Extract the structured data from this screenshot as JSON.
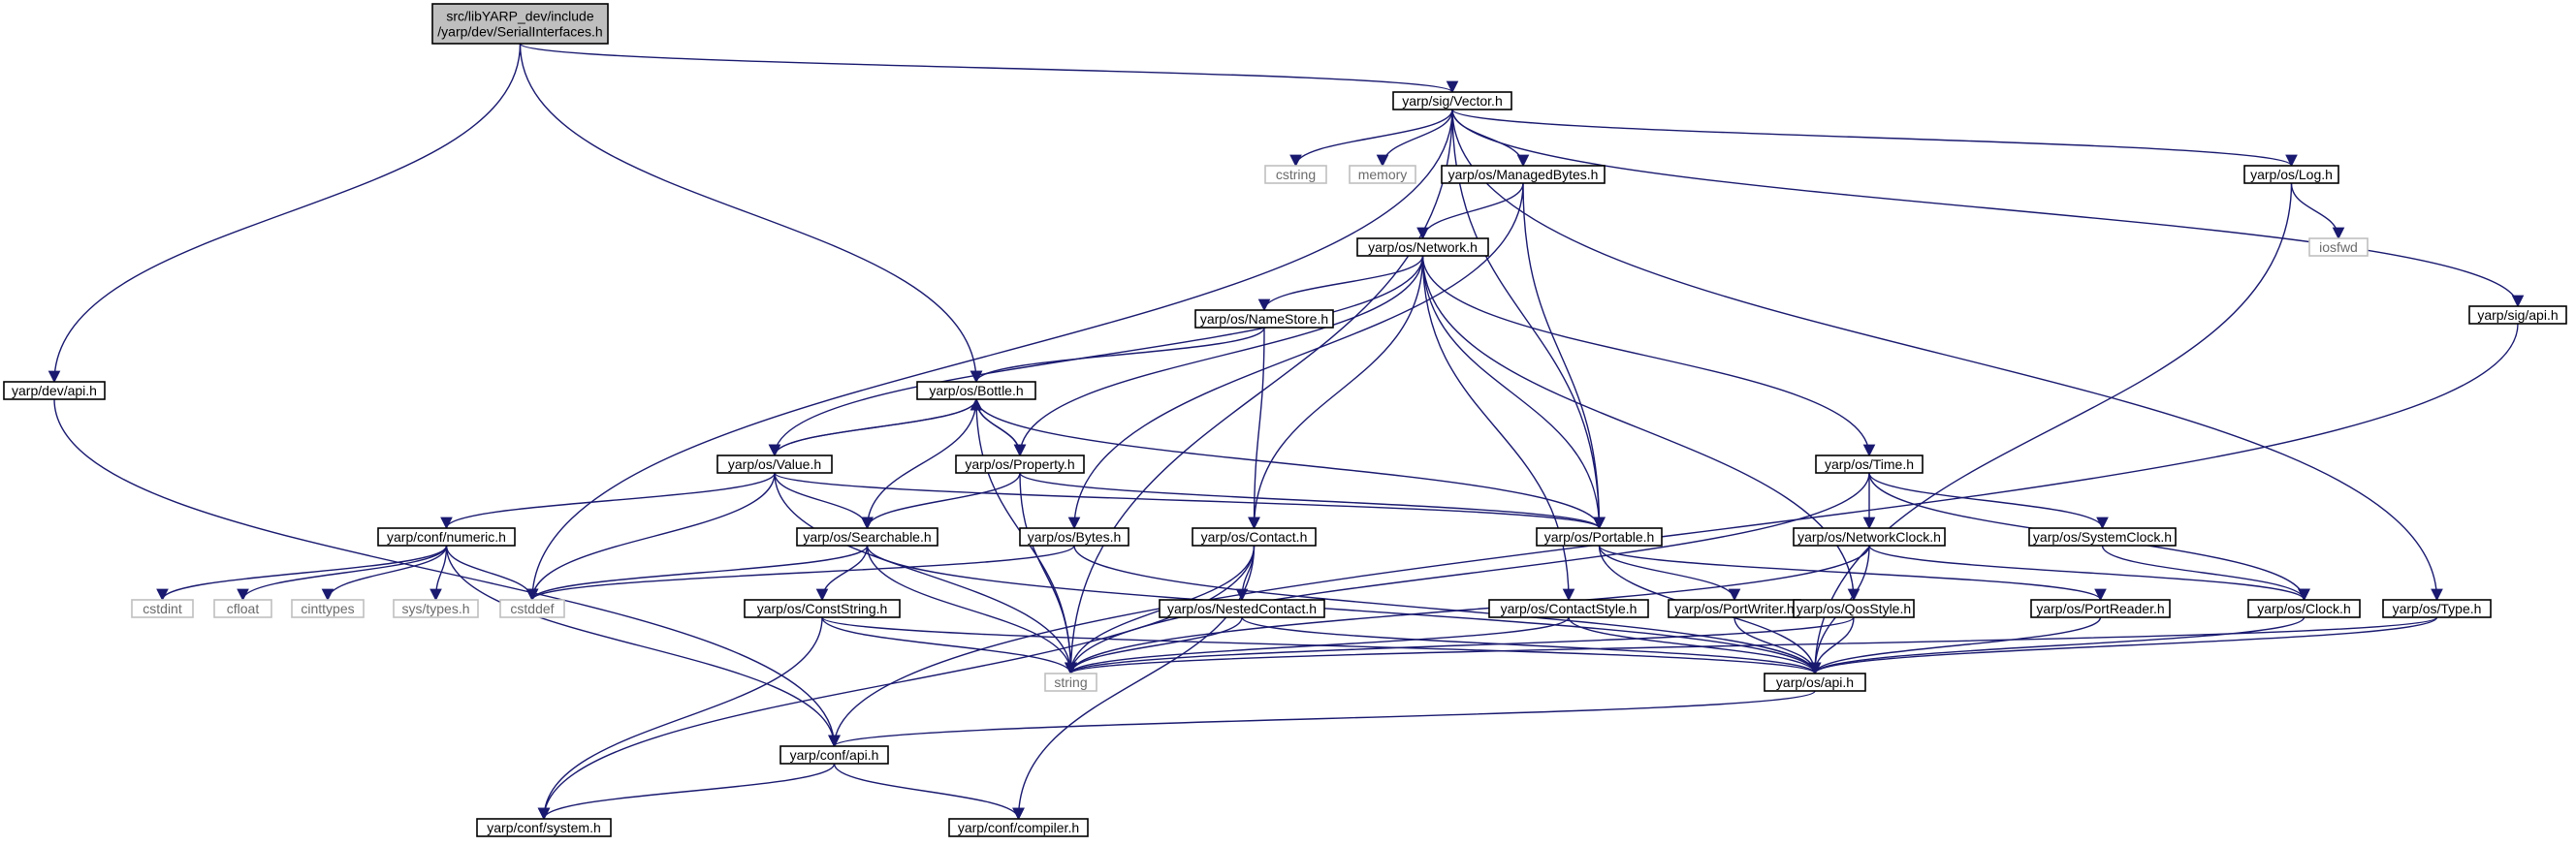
{
  "graph": {
    "colors": {
      "edge": "#191970",
      "root_fill": "#bfbfbf",
      "node_fill": "#ffffff",
      "node_border": "#000000",
      "system_border": "#bfbfbf",
      "system_text": "#6b6b6b"
    },
    "nodes": [
      {
        "id": "root",
        "kind": "root",
        "lines": [
          "src/libYARP_dev/include",
          "/yarp/dev/SerialInterfaces.h"
        ]
      },
      {
        "id": "sig_vector",
        "kind": "file",
        "lines": [
          "yarp/sig/Vector.h"
        ]
      },
      {
        "id": "dev_api",
        "kind": "file",
        "lines": [
          "yarp/dev/api.h"
        ]
      },
      {
        "id": "cstring",
        "kind": "system",
        "lines": [
          "cstring"
        ]
      },
      {
        "id": "memory",
        "kind": "system",
        "lines": [
          "memory"
        ]
      },
      {
        "id": "managedbytes",
        "kind": "file",
        "lines": [
          "yarp/os/ManagedBytes.h"
        ]
      },
      {
        "id": "log",
        "kind": "file",
        "lines": [
          "yarp/os/Log.h"
        ]
      },
      {
        "id": "iosfwd",
        "kind": "system",
        "lines": [
          "iosfwd"
        ]
      },
      {
        "id": "sig_api",
        "kind": "file",
        "lines": [
          "yarp/sig/api.h"
        ]
      },
      {
        "id": "network",
        "kind": "file",
        "lines": [
          "yarp/os/Network.h"
        ]
      },
      {
        "id": "namestore",
        "kind": "file",
        "lines": [
          "yarp/os/NameStore.h"
        ]
      },
      {
        "id": "bottle",
        "kind": "file",
        "lines": [
          "yarp/os/Bottle.h"
        ]
      },
      {
        "id": "value",
        "kind": "file",
        "lines": [
          "yarp/os/Value.h"
        ]
      },
      {
        "id": "property",
        "kind": "file",
        "lines": [
          "yarp/os/Property.h"
        ]
      },
      {
        "id": "portable",
        "kind": "file",
        "lines": [
          "yarp/os/Portable.h"
        ]
      },
      {
        "id": "time",
        "kind": "file",
        "lines": [
          "yarp/os/Time.h"
        ]
      },
      {
        "id": "numeric",
        "kind": "file",
        "lines": [
          "yarp/conf/numeric.h"
        ]
      },
      {
        "id": "searchable",
        "kind": "file",
        "lines": [
          "yarp/os/Searchable.h"
        ]
      },
      {
        "id": "bytes",
        "kind": "file",
        "lines": [
          "yarp/os/Bytes.h"
        ]
      },
      {
        "id": "contact",
        "kind": "file",
        "lines": [
          "yarp/os/Contact.h"
        ]
      },
      {
        "id": "networkclock",
        "kind": "file",
        "lines": [
          "yarp/os/NetworkClock.h"
        ]
      },
      {
        "id": "systemclock",
        "kind": "file",
        "lines": [
          "yarp/os/SystemClock.h"
        ]
      },
      {
        "id": "cstdint",
        "kind": "system",
        "lines": [
          "cstdint"
        ]
      },
      {
        "id": "cfloat",
        "kind": "system",
        "lines": [
          "cfloat"
        ]
      },
      {
        "id": "cinttypes",
        "kind": "system",
        "lines": [
          "cinttypes"
        ]
      },
      {
        "id": "systypes",
        "kind": "system",
        "lines": [
          "sys/types.h"
        ]
      },
      {
        "id": "cstddef",
        "kind": "system",
        "lines": [
          "cstddef"
        ]
      },
      {
        "id": "conststring",
        "kind": "file",
        "lines": [
          "yarp/os/ConstString.h"
        ]
      },
      {
        "id": "nestedcontact",
        "kind": "file",
        "lines": [
          "yarp/os/NestedContact.h"
        ]
      },
      {
        "id": "contactstyle",
        "kind": "file",
        "lines": [
          "yarp/os/ContactStyle.h"
        ]
      },
      {
        "id": "portwriter",
        "kind": "file",
        "lines": [
          "yarp/os/PortWriter.h"
        ]
      },
      {
        "id": "qosstyle",
        "kind": "file",
        "lines": [
          "yarp/os/QosStyle.h"
        ]
      },
      {
        "id": "portreader",
        "kind": "file",
        "lines": [
          "yarp/os/PortReader.h"
        ]
      },
      {
        "id": "clock",
        "kind": "file",
        "lines": [
          "yarp/os/Clock.h"
        ]
      },
      {
        "id": "type",
        "kind": "file",
        "lines": [
          "yarp/os/Type.h"
        ]
      },
      {
        "id": "string",
        "kind": "system",
        "lines": [
          "string"
        ]
      },
      {
        "id": "os_api",
        "kind": "file",
        "lines": [
          "yarp/os/api.h"
        ]
      },
      {
        "id": "conf_api",
        "kind": "file",
        "lines": [
          "yarp/conf/api.h"
        ]
      },
      {
        "id": "system",
        "kind": "file",
        "lines": [
          "yarp/conf/system.h"
        ]
      },
      {
        "id": "compiler",
        "kind": "file",
        "lines": [
          "yarp/conf/compiler.h"
        ]
      }
    ],
    "edges": [
      [
        "root",
        "sig_vector"
      ],
      [
        "root",
        "dev_api"
      ],
      [
        "root",
        "bottle"
      ],
      [
        "sig_vector",
        "cstring"
      ],
      [
        "sig_vector",
        "memory"
      ],
      [
        "sig_vector",
        "managedbytes"
      ],
      [
        "sig_vector",
        "log"
      ],
      [
        "sig_vector",
        "sig_api"
      ],
      [
        "sig_vector",
        "cstddef"
      ],
      [
        "sig_vector",
        "string"
      ],
      [
        "sig_vector",
        "portable"
      ],
      [
        "sig_vector",
        "type"
      ],
      [
        "dev_api",
        "conf_api"
      ],
      [
        "managedbytes",
        "network"
      ],
      [
        "managedbytes",
        "bytes"
      ],
      [
        "managedbytes",
        "portable"
      ],
      [
        "log",
        "iosfwd"
      ],
      [
        "log",
        "os_api"
      ],
      [
        "sig_api",
        "conf_api"
      ],
      [
        "network",
        "namestore"
      ],
      [
        "network",
        "value"
      ],
      [
        "network",
        "property"
      ],
      [
        "network",
        "portable"
      ],
      [
        "network",
        "time"
      ],
      [
        "network",
        "contact"
      ],
      [
        "network",
        "contactstyle"
      ],
      [
        "network",
        "qosstyle"
      ],
      [
        "namestore",
        "bottle"
      ],
      [
        "namestore",
        "contact"
      ],
      [
        "bottle",
        "value"
      ],
      [
        "bottle",
        "property"
      ],
      [
        "bottle",
        "portable"
      ],
      [
        "bottle",
        "string"
      ],
      [
        "bottle",
        "searchable"
      ],
      [
        "value",
        "bottle"
      ],
      [
        "value",
        "numeric"
      ],
      [
        "value",
        "searchable"
      ],
      [
        "value",
        "cstddef"
      ],
      [
        "value",
        "string"
      ],
      [
        "value",
        "portable"
      ],
      [
        "property",
        "bottle"
      ],
      [
        "property",
        "searchable"
      ],
      [
        "property",
        "portable"
      ],
      [
        "property",
        "string"
      ],
      [
        "portable",
        "portwriter"
      ],
      [
        "portable",
        "portreader"
      ],
      [
        "portable",
        "os_api"
      ],
      [
        "time",
        "networkclock"
      ],
      [
        "time",
        "systemclock"
      ],
      [
        "time",
        "clock"
      ],
      [
        "time",
        "string"
      ],
      [
        "numeric",
        "cstdint"
      ],
      [
        "numeric",
        "cfloat"
      ],
      [
        "numeric",
        "cinttypes"
      ],
      [
        "numeric",
        "systypes"
      ],
      [
        "numeric",
        "cstddef"
      ],
      [
        "numeric",
        "conf_api"
      ],
      [
        "searchable",
        "conststring"
      ],
      [
        "searchable",
        "string"
      ],
      [
        "searchable",
        "os_api"
      ],
      [
        "searchable",
        "cstddef"
      ],
      [
        "bytes",
        "cstddef"
      ],
      [
        "bytes",
        "os_api"
      ],
      [
        "contact",
        "nestedcontact"
      ],
      [
        "contact",
        "string"
      ],
      [
        "contact",
        "system"
      ],
      [
        "contact",
        "compiler"
      ],
      [
        "networkclock",
        "clock"
      ],
      [
        "networkclock",
        "string"
      ],
      [
        "networkclock",
        "os_api"
      ],
      [
        "systemclock",
        "clock"
      ],
      [
        "conststring",
        "string"
      ],
      [
        "conststring",
        "os_api"
      ],
      [
        "conststring",
        "system"
      ],
      [
        "nestedcontact",
        "string"
      ],
      [
        "nestedcontact",
        "os_api"
      ],
      [
        "contactstyle",
        "string"
      ],
      [
        "contactstyle",
        "os_api"
      ],
      [
        "portwriter",
        "os_api"
      ],
      [
        "qosstyle",
        "string"
      ],
      [
        "qosstyle",
        "os_api"
      ],
      [
        "portreader",
        "os_api"
      ],
      [
        "clock",
        "os_api"
      ],
      [
        "type",
        "string"
      ],
      [
        "type",
        "os_api"
      ],
      [
        "os_api",
        "conf_api"
      ],
      [
        "conf_api",
        "system"
      ],
      [
        "conf_api",
        "compiler"
      ]
    ]
  }
}
